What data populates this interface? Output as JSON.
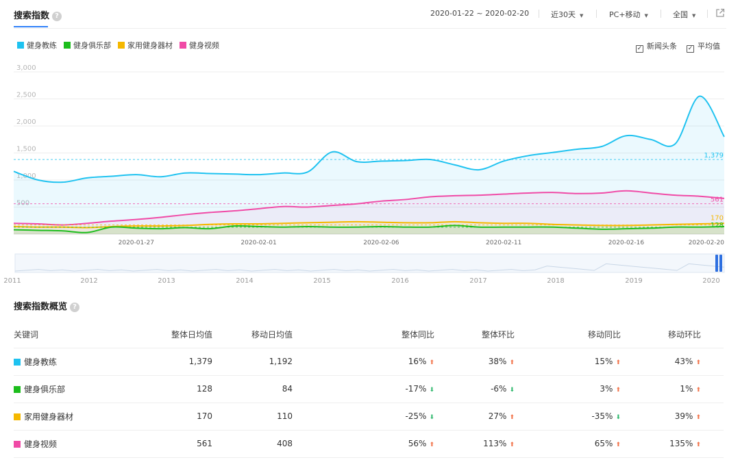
{
  "header": {
    "title": "搜索指数",
    "date_range": "2020-01-22 ~ 2020-02-20",
    "period": "近30天",
    "device": "PC+移动",
    "region": "全国"
  },
  "legend": [
    {
      "name": "健身教练",
      "color": "#1ec2f0"
    },
    {
      "name": "健身俱乐部",
      "color": "#1cbd1c"
    },
    {
      "name": "家用健身器材",
      "color": "#f5b800"
    },
    {
      "name": "健身视频",
      "color": "#f04aa6"
    }
  ],
  "options": [
    {
      "label": "新闻头条",
      "checked": true
    },
    {
      "label": "平均值",
      "checked": true
    }
  ],
  "chart_data": {
    "type": "area",
    "x": [
      "2020-01-22",
      "2020-01-23",
      "2020-01-24",
      "2020-01-25",
      "2020-01-26",
      "2020-01-27",
      "2020-01-28",
      "2020-01-29",
      "2020-01-30",
      "2020-01-31",
      "2020-02-01",
      "2020-02-02",
      "2020-02-03",
      "2020-02-04",
      "2020-02-05",
      "2020-02-06",
      "2020-02-07",
      "2020-02-08",
      "2020-02-09",
      "2020-02-10",
      "2020-02-11",
      "2020-02-12",
      "2020-02-13",
      "2020-02-14",
      "2020-02-15",
      "2020-02-16",
      "2020-02-17",
      "2020-02-18",
      "2020-02-19",
      "2020-02-20"
    ],
    "x_ticks": [
      "2020-01-27",
      "2020-02-01",
      "2020-02-06",
      "2020-02-11",
      "2020-02-16",
      "2020-02-20"
    ],
    "y_ticks": [
      0,
      500,
      1000,
      1500,
      2000,
      2500,
      3000
    ],
    "y_tick_labels": [
      "",
      "500",
      "1,000",
      "1,500",
      "2,000",
      "2,500",
      "3,000"
    ],
    "ylim": [
      0,
      3000
    ],
    "grid": true,
    "series": [
      {
        "name": "健身教练",
        "color": "#1ec2f0",
        "avg": 1379,
        "avg_label": "1,379",
        "values": [
          1160,
          1000,
          960,
          1040,
          1070,
          1100,
          1060,
          1130,
          1120,
          1110,
          1100,
          1130,
          1150,
          1520,
          1340,
          1350,
          1360,
          1380,
          1280,
          1190,
          1350,
          1450,
          1510,
          1570,
          1620,
          1820,
          1750,
          1670,
          2550,
          1800
        ]
      },
      {
        "name": "健身视频",
        "color": "#f04aa6",
        "avg": 561,
        "avg_label": "561",
        "values": [
          200,
          190,
          170,
          200,
          240,
          270,
          310,
          360,
          400,
          430,
          470,
          510,
          500,
          530,
          560,
          610,
          640,
          690,
          710,
          720,
          740,
          760,
          770,
          750,
          760,
          800,
          760,
          720,
          700,
          660
        ]
      },
      {
        "name": "家用健身器材",
        "color": "#f5b800",
        "avg": 170,
        "avg_label": "170",
        "values": [
          140,
          130,
          130,
          120,
          140,
          150,
          150,
          160,
          180,
          190,
          190,
          200,
          210,
          220,
          230,
          220,
          210,
          210,
          230,
          210,
          200,
          200,
          180,
          170,
          160,
          160,
          170,
          180,
          190,
          200
        ]
      },
      {
        "name": "健身俱乐部",
        "color": "#1cbd1c",
        "avg": 128,
        "avg_label": "128",
        "values": [
          80,
          70,
          60,
          30,
          130,
          110,
          100,
          120,
          100,
          150,
          140,
          130,
          140,
          130,
          130,
          140,
          130,
          130,
          160,
          130,
          130,
          130,
          130,
          110,
          90,
          100,
          110,
          130,
          130,
          140
        ]
      }
    ],
    "overview_ticks": [
      "2011",
      "2012",
      "2013",
      "2014",
      "2015",
      "2016",
      "2017",
      "2018",
      "2019",
      "2020"
    ]
  },
  "summary": {
    "title": "搜索指数概览",
    "headers": [
      "关键词",
      "整体日均值",
      "移动日均值",
      "整体同比",
      "整体环比",
      "移动同比",
      "移动环比"
    ],
    "rows": [
      {
        "keyword": "健身教练",
        "color": "#1ec2f0",
        "overall_avg": "1,379",
        "mobile_avg": "1,192",
        "yoy": "16%",
        "yoy_dir": "up",
        "mom": "38%",
        "mom_dir": "up",
        "m_yoy": "15%",
        "m_yoy_dir": "up",
        "m_mom": "43%",
        "m_mom_dir": "up"
      },
      {
        "keyword": "健身俱乐部",
        "color": "#1cbd1c",
        "overall_avg": "128",
        "mobile_avg": "84",
        "yoy": "-17%",
        "yoy_dir": "down",
        "mom": "-6%",
        "mom_dir": "down",
        "m_yoy": "3%",
        "m_yoy_dir": "up",
        "m_mom": "1%",
        "m_mom_dir": "up"
      },
      {
        "keyword": "家用健身器材",
        "color": "#f5b800",
        "overall_avg": "170",
        "mobile_avg": "110",
        "yoy": "-25%",
        "yoy_dir": "down",
        "mom": "27%",
        "mom_dir": "up",
        "m_yoy": "-35%",
        "m_yoy_dir": "down",
        "m_mom": "39%",
        "m_mom_dir": "up"
      },
      {
        "keyword": "健身视频",
        "color": "#f04aa6",
        "overall_avg": "561",
        "mobile_avg": "408",
        "yoy": "56%",
        "yoy_dir": "up",
        "mom": "113%",
        "mom_dir": "up",
        "m_yoy": "65%",
        "m_yoy_dir": "up",
        "m_mom": "135%",
        "m_mom_dir": "up"
      }
    ]
  }
}
